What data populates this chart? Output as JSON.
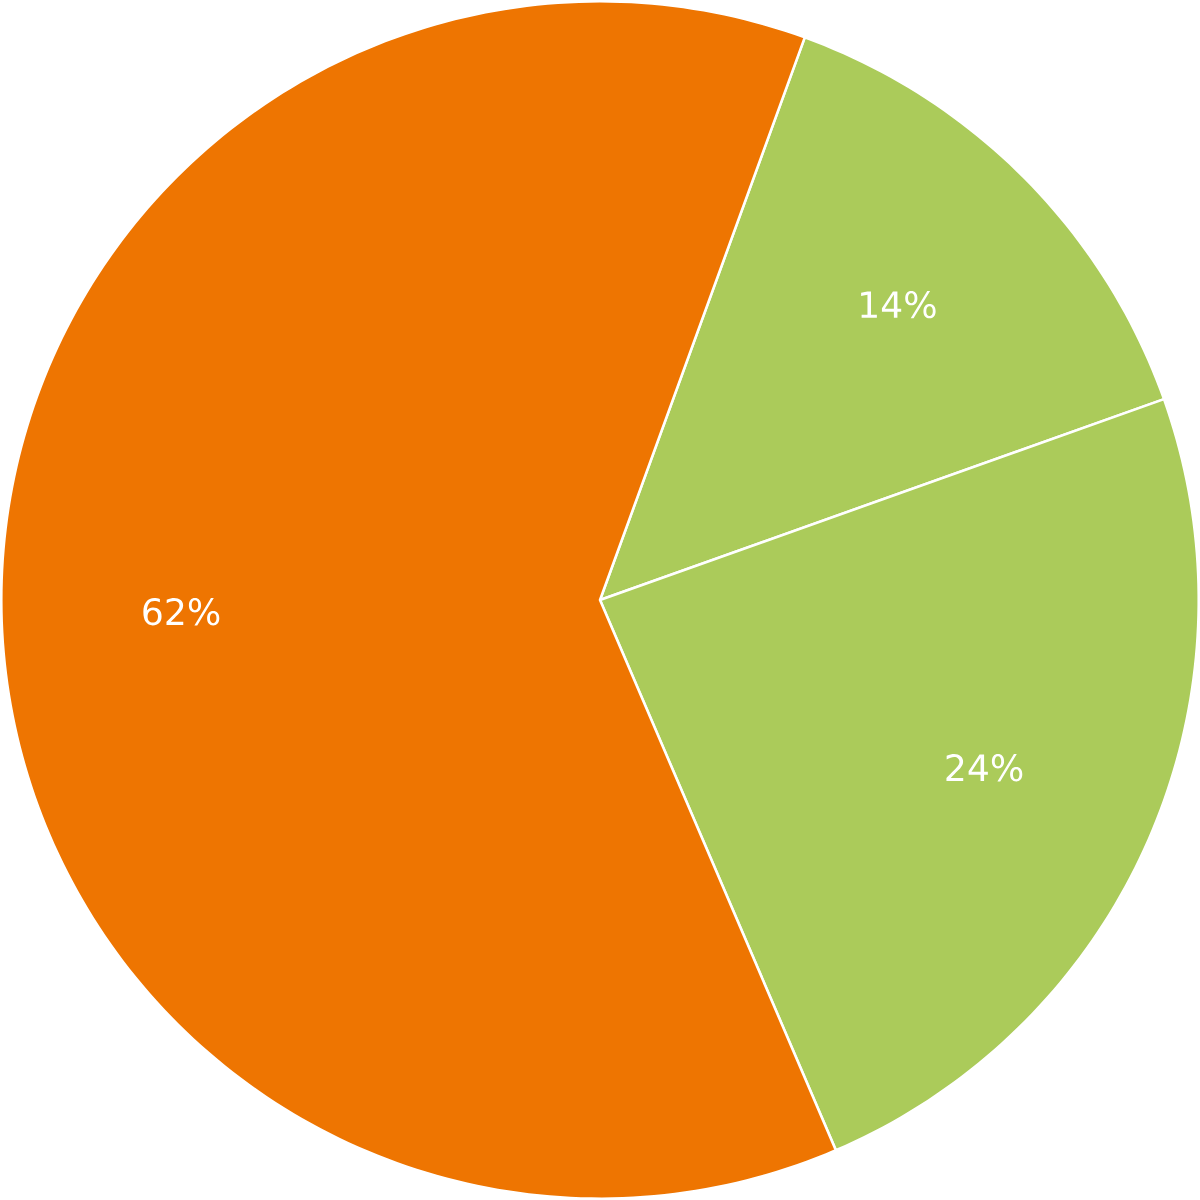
{
  "chart_data": {
    "type": "pie",
    "categories": [
      null,
      null,
      null
    ],
    "values": [
      14,
      24,
      62
    ],
    "colors": [
      "#abcb5a",
      "#abcb5a",
      "#ee7501"
    ],
    "value_labels": [
      "14%",
      "24%",
      "62%"
    ]
  }
}
